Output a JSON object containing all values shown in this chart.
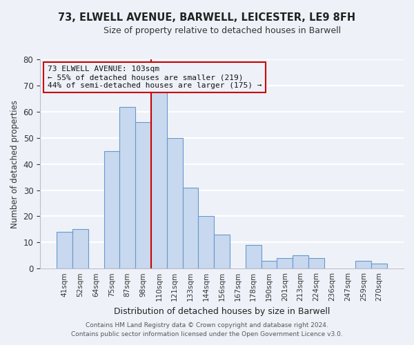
{
  "title": "73, ELWELL AVENUE, BARWELL, LEICESTER, LE9 8FH",
  "subtitle": "Size of property relative to detached houses in Barwell",
  "xlabel": "Distribution of detached houses by size in Barwell",
  "ylabel": "Number of detached properties",
  "categories": [
    "41sqm",
    "52sqm",
    "64sqm",
    "75sqm",
    "87sqm",
    "98sqm",
    "110sqm",
    "121sqm",
    "133sqm",
    "144sqm",
    "156sqm",
    "167sqm",
    "178sqm",
    "190sqm",
    "201sqm",
    "213sqm",
    "224sqm",
    "236sqm",
    "247sqm",
    "259sqm",
    "270sqm"
  ],
  "values": [
    14,
    15,
    0,
    45,
    62,
    56,
    68,
    50,
    31,
    20,
    13,
    0,
    9,
    3,
    4,
    5,
    4,
    0,
    0,
    3,
    2
  ],
  "bar_color": "#c8d8ee",
  "bar_edge_color": "#6699cc",
  "marker_line_color": "#cc0000",
  "annotation_line1": "73 ELWELL AVENUE: 103sqm",
  "annotation_line2": "← 55% of detached houses are smaller (219)",
  "annotation_line3": "44% of semi-detached houses are larger (175) →",
  "annotation_box_edge": "#cc0000",
  "ylim": [
    0,
    80
  ],
  "footer1": "Contains HM Land Registry data © Crown copyright and database right 2024.",
  "footer2": "Contains public sector information licensed under the Open Government Licence v3.0.",
  "background_color": "#eef2f8"
}
